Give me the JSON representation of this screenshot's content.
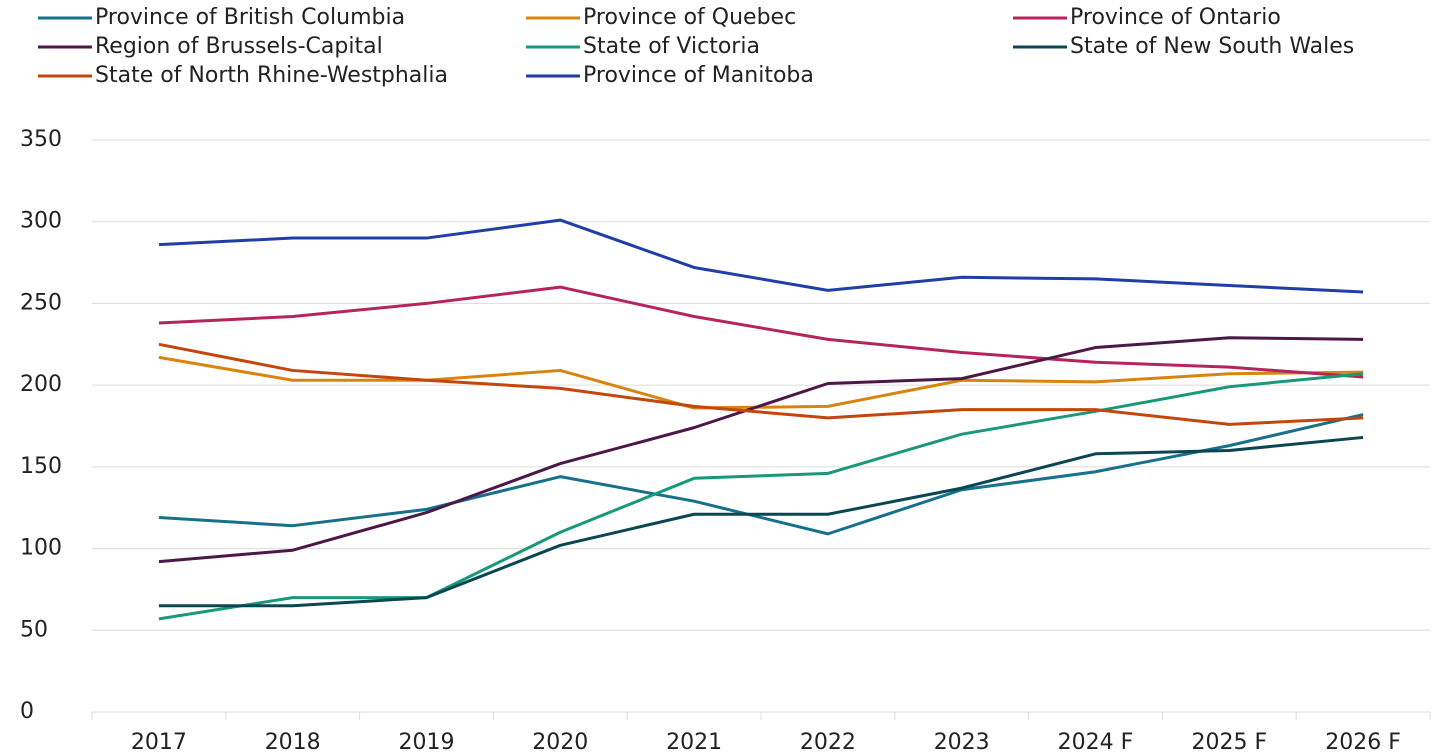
{
  "chart_data": {
    "type": "line",
    "categories": [
      "2017",
      "2018",
      "2019",
      "2020",
      "2021",
      "2022",
      "2023",
      "2024 F",
      "2025 F",
      "2026 F"
    ],
    "series": [
      {
        "name": "Province of British Columbia",
        "color": "#17708c",
        "values": [
          119,
          114,
          124,
          144,
          129,
          109,
          136,
          147,
          163,
          182
        ]
      },
      {
        "name": "Province of Quebec",
        "color": "#d8850f",
        "values": [
          217,
          203,
          203,
          209,
          186,
          187,
          203,
          202,
          207,
          208
        ]
      },
      {
        "name": "Province of Ontario",
        "color": "#b5245c",
        "values": [
          238,
          242,
          250,
          260,
          242,
          228,
          220,
          214,
          211,
          205
        ]
      },
      {
        "name": "Region of Brussels-Capital",
        "color": "#4b1848",
        "values": [
          92,
          99,
          122,
          152,
          174,
          201,
          204,
          223,
          229,
          228
        ]
      },
      {
        "name": "State of Victoria",
        "color": "#19997a",
        "values": [
          57,
          70,
          70,
          110,
          143,
          146,
          170,
          184,
          199,
          207
        ]
      },
      {
        "name": "State of New South Wales",
        "color": "#0b4753",
        "values": [
          65,
          65,
          70,
          102,
          121,
          121,
          137,
          158,
          160,
          168
        ]
      },
      {
        "name": "State of North Rhine-Westphalia",
        "color": "#c4460c",
        "values": [
          225,
          209,
          203,
          198,
          187,
          180,
          185,
          185,
          176,
          180
        ]
      },
      {
        "name": "Province of Manitoba",
        "color": "#1f3ea6",
        "values": [
          286,
          290,
          290,
          301,
          272,
          258,
          266,
          265,
          261,
          257
        ]
      }
    ],
    "ylim": [
      0,
      350
    ],
    "yticks": [
      0,
      50,
      100,
      150,
      200,
      250,
      300,
      350
    ],
    "grid": true
  }
}
